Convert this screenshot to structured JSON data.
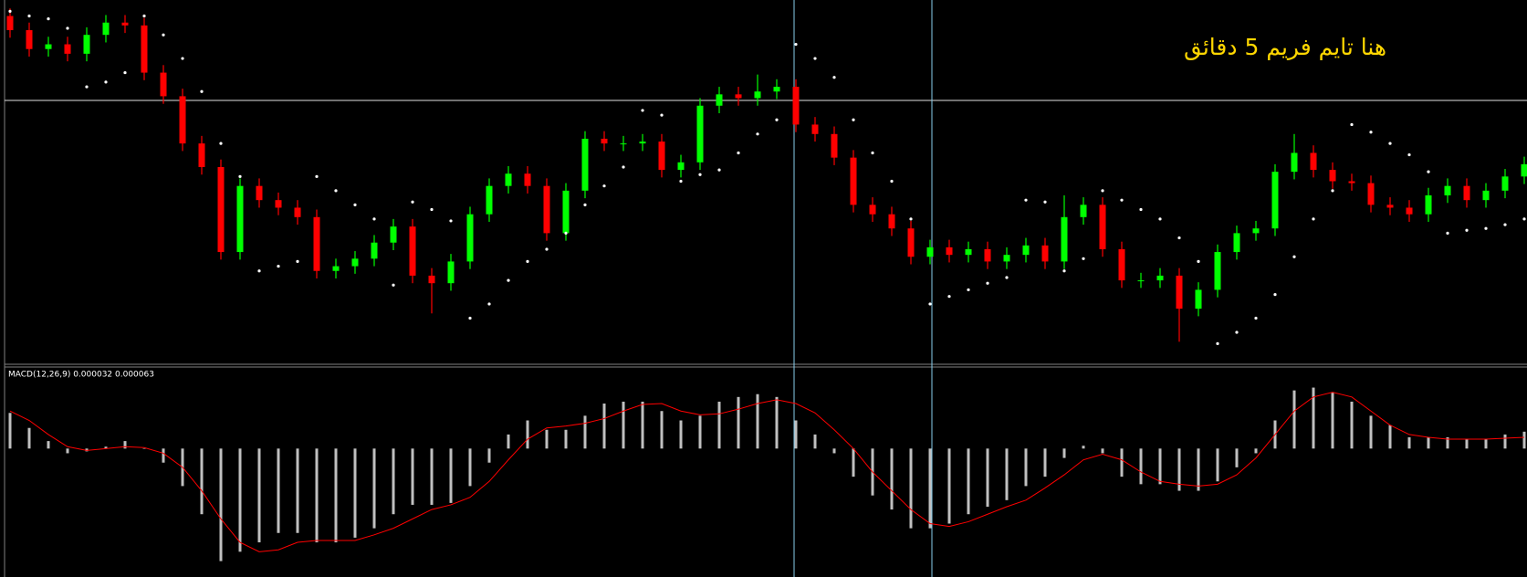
{
  "chart_data": [
    {
      "type": "candlestick",
      "annotation": "هنا تايم فريم 5 دقائق",
      "annotation_color": "#ffd700",
      "up_color": "#00ff00",
      "down_color": "#ff0000",
      "sar_color": "#ffffff",
      "ylim": [
        0,
        380
      ],
      "open": [
        365,
        350,
        330,
        335,
        325,
        345,
        358,
        355,
        305,
        280,
        230,
        205,
        115,
        185,
        170,
        162,
        152,
        95,
        100,
        108,
        125,
        142,
        90,
        82,
        105,
        155,
        185,
        198,
        185,
        135,
        180,
        235,
        230,
        230,
        232,
        202,
        210,
        270,
        282,
        278,
        285,
        290,
        250,
        240,
        215,
        165,
        155,
        140,
        110,
        120,
        112,
        118,
        105,
        112,
        122,
        105,
        152,
        165,
        118,
        85,
        85,
        90,
        55,
        75,
        115,
        135,
        140,
        200,
        220,
        202,
        190,
        188,
        165,
        162,
        155,
        175,
        185,
        170,
        180,
        195
      ],
      "high": [
        373,
        358,
        343,
        343,
        353,
        366,
        366,
        363,
        313,
        288,
        238,
        213,
        193,
        193,
        178,
        170,
        160,
        108,
        116,
        133,
        150,
        150,
        98,
        113,
        163,
        193,
        206,
        206,
        193,
        188,
        243,
        243,
        238,
        240,
        240,
        218,
        278,
        290,
        290,
        303,
        298,
        298,
        258,
        248,
        223,
        173,
        163,
        148,
        128,
        128,
        126,
        126,
        120,
        130,
        130,
        175,
        173,
        173,
        126,
        93,
        98,
        98,
        83,
        123,
        143,
        148,
        208,
        240,
        228,
        210,
        198,
        196,
        173,
        170,
        183,
        193,
        193,
        188,
        203,
        216
      ],
      "low": [
        342,
        322,
        322,
        317,
        317,
        337,
        347,
        297,
        272,
        222,
        197,
        107,
        107,
        162,
        154,
        144,
        87,
        87,
        92,
        100,
        117,
        82,
        50,
        74,
        97,
        147,
        177,
        177,
        127,
        127,
        172,
        222,
        222,
        222,
        194,
        194,
        202,
        262,
        270,
        270,
        277,
        242,
        232,
        207,
        157,
        147,
        132,
        102,
        102,
        104,
        104,
        97,
        97,
        104,
        97,
        97,
        144,
        110,
        77,
        77,
        77,
        20,
        47,
        67,
        107,
        127,
        132,
        192,
        194,
        182,
        180,
        157,
        154,
        147,
        147,
        167,
        162,
        162,
        172,
        187
      ],
      "close": [
        350,
        330,
        335,
        325,
        345,
        358,
        355,
        305,
        280,
        230,
        205,
        115,
        185,
        170,
        162,
        152,
        95,
        100,
        108,
        125,
        142,
        90,
        82,
        105,
        155,
        185,
        198,
        185,
        135,
        180,
        235,
        230,
        230,
        232,
        202,
        210,
        270,
        282,
        278,
        285,
        290,
        250,
        240,
        215,
        165,
        155,
        140,
        110,
        120,
        112,
        118,
        105,
        112,
        122,
        105,
        152,
        165,
        118,
        85,
        85,
        90,
        55,
        75,
        115,
        135,
        140,
        200,
        220,
        202,
        190,
        188,
        165,
        162,
        155,
        175,
        185,
        170,
        180,
        195,
        208
      ],
      "sar": [
        370,
        365,
        362,
        352,
        290,
        295,
        305,
        365,
        345,
        320,
        285,
        230,
        195,
        95,
        100,
        105,
        195,
        180,
        165,
        150,
        80,
        168,
        160,
        148,
        45,
        60,
        85,
        105,
        118,
        135,
        165,
        185,
        205,
        265,
        260,
        190,
        197,
        202,
        220,
        240,
        255,
        335,
        320,
        300,
        255,
        220,
        190,
        150,
        60,
        68,
        75,
        82,
        88,
        170,
        168,
        95,
        108,
        180,
        170,
        160,
        150,
        130,
        105,
        18,
        30,
        45,
        70,
        110,
        150,
        180,
        250,
        242,
        230,
        218,
        200,
        135,
        138,
        140,
        144,
        150
      ]
    },
    {
      "type": "bar-line",
      "title": "MACD(12,26,9) 0.000032 0.000063",
      "ylim": [
        -135,
        85
      ],
      "series": [
        {
          "color": "#c0c0c0",
          "values": [
            38,
            22,
            8,
            -5,
            -3,
            2,
            8,
            0,
            -15,
            -40,
            -70,
            -120,
            -110,
            -100,
            -90,
            -90,
            -100,
            -100,
            -95,
            -85,
            -70,
            -60,
            -60,
            -58,
            -40,
            -15,
            15,
            30,
            20,
            20,
            35,
            48,
            50,
            50,
            40,
            30,
            35,
            50,
            55,
            58,
            55,
            30,
            15,
            -5,
            -30,
            -50,
            -65,
            -85,
            -85,
            -80,
            -70,
            -62,
            -55,
            -40,
            -30,
            -10,
            3,
            -5,
            -30,
            -38,
            -38,
            -45,
            -45,
            -35,
            -20,
            -5,
            30,
            62,
            65,
            60,
            50,
            35,
            25,
            12,
            12,
            12,
            10,
            10,
            15,
            18
          ]
        },
        {
          "color": "#ff0000",
          "values": [
            40,
            30,
            15,
            2,
            -2,
            0,
            2,
            1,
            -5,
            -20,
            -45,
            -75,
            -100,
            -110,
            -108,
            -100,
            -98,
            -98,
            -98,
            -92,
            -85,
            -75,
            -65,
            -60,
            -52,
            -35,
            -12,
            10,
            22,
            24,
            27,
            32,
            40,
            47,
            48,
            40,
            36,
            37,
            42,
            48,
            52,
            48,
            38,
            20,
            0,
            -25,
            -45,
            -65,
            -80,
            -83,
            -78,
            -70,
            -62,
            -55,
            -42,
            -28,
            -12,
            -6,
            -12,
            -25,
            -35,
            -38,
            -40,
            -38,
            -28,
            -10,
            15,
            40,
            55,
            60,
            55,
            40,
            25,
            15,
            12,
            10,
            10,
            10,
            11,
            12
          ]
        }
      ]
    }
  ]
}
